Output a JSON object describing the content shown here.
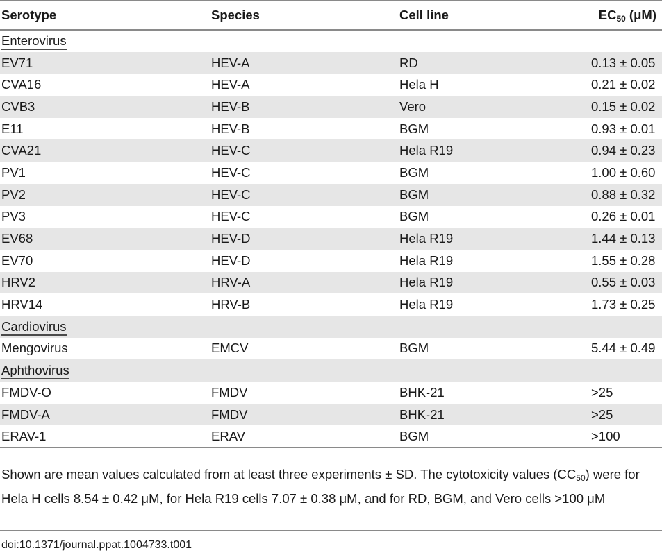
{
  "headers": {
    "serotype": "Serotype",
    "species": "Species",
    "cell_line": "Cell line",
    "ec_prefix": "EC",
    "ec_sub": "50",
    "ec_suffix": " (μM)"
  },
  "groups": {
    "enterovirus": "Enterovirus",
    "cardiovirus": "Cardiovirus",
    "aphthovirus": "Aphthovirus"
  },
  "rows": [
    {
      "serotype": "EV71",
      "species": "HEV-A",
      "cell_line": "RD",
      "ec50": "0.13 ± 0.05"
    },
    {
      "serotype": "CVA16",
      "species": "HEV-A",
      "cell_line": "Hela H",
      "ec50": "0.21 ± 0.02"
    },
    {
      "serotype": "CVB3",
      "species": "HEV-B",
      "cell_line": "Vero",
      "ec50": "0.15 ± 0.02"
    },
    {
      "serotype": "E11",
      "species": "HEV-B",
      "cell_line": "BGM",
      "ec50": "0.93 ± 0.01"
    },
    {
      "serotype": "CVA21",
      "species": "HEV-C",
      "cell_line": "Hela R19",
      "ec50": "0.94 ± 0.23"
    },
    {
      "serotype": "PV1",
      "species": "HEV-C",
      "cell_line": "BGM",
      "ec50": "1.00 ± 0.60"
    },
    {
      "serotype": "PV2",
      "species": "HEV-C",
      "cell_line": "BGM",
      "ec50": "0.88 ± 0.32"
    },
    {
      "serotype": "PV3",
      "species": "HEV-C",
      "cell_line": "BGM",
      "ec50": "0.26 ± 0.01"
    },
    {
      "serotype": "EV68",
      "species": "HEV-D",
      "cell_line": "Hela R19",
      "ec50": "1.44 ± 0.13"
    },
    {
      "serotype": "EV70",
      "species": "HEV-D",
      "cell_line": "Hela R19",
      "ec50": "1.55 ± 0.28"
    },
    {
      "serotype": "HRV2",
      "species": "HRV-A",
      "cell_line": "Hela R19",
      "ec50": "0.55 ± 0.03"
    },
    {
      "serotype": "HRV14",
      "species": "HRV-B",
      "cell_line": "Hela R19",
      "ec50": "1.73 ± 0.25"
    },
    {
      "serotype": "Mengovirus",
      "species": "EMCV",
      "cell_line": "BGM",
      "ec50": "5.44 ± 0.49"
    },
    {
      "serotype": "FMDV-O",
      "species": "FMDV",
      "cell_line": "BHK-21",
      "ec50": ">25"
    },
    {
      "serotype": "FMDV-A",
      "species": "FMDV",
      "cell_line": "BHK-21",
      "ec50": ">25"
    },
    {
      "serotype": "ERAV-1",
      "species": "ERAV",
      "cell_line": "BGM",
      "ec50": ">100"
    }
  ],
  "footnote": {
    "part1": "Shown are mean values calculated from at least three experiments ± SD. The cytotoxicity values (CC",
    "sub": "50",
    "part2": ") were for Hela H cells 8.54 ± 0.42 μM, for Hela R19 cells 7.07 ± 0.38 μM, and for RD, BGM, and Vero cells >100 μM"
  },
  "doi": "doi:10.1371/journal.ppat.1004733.t001"
}
